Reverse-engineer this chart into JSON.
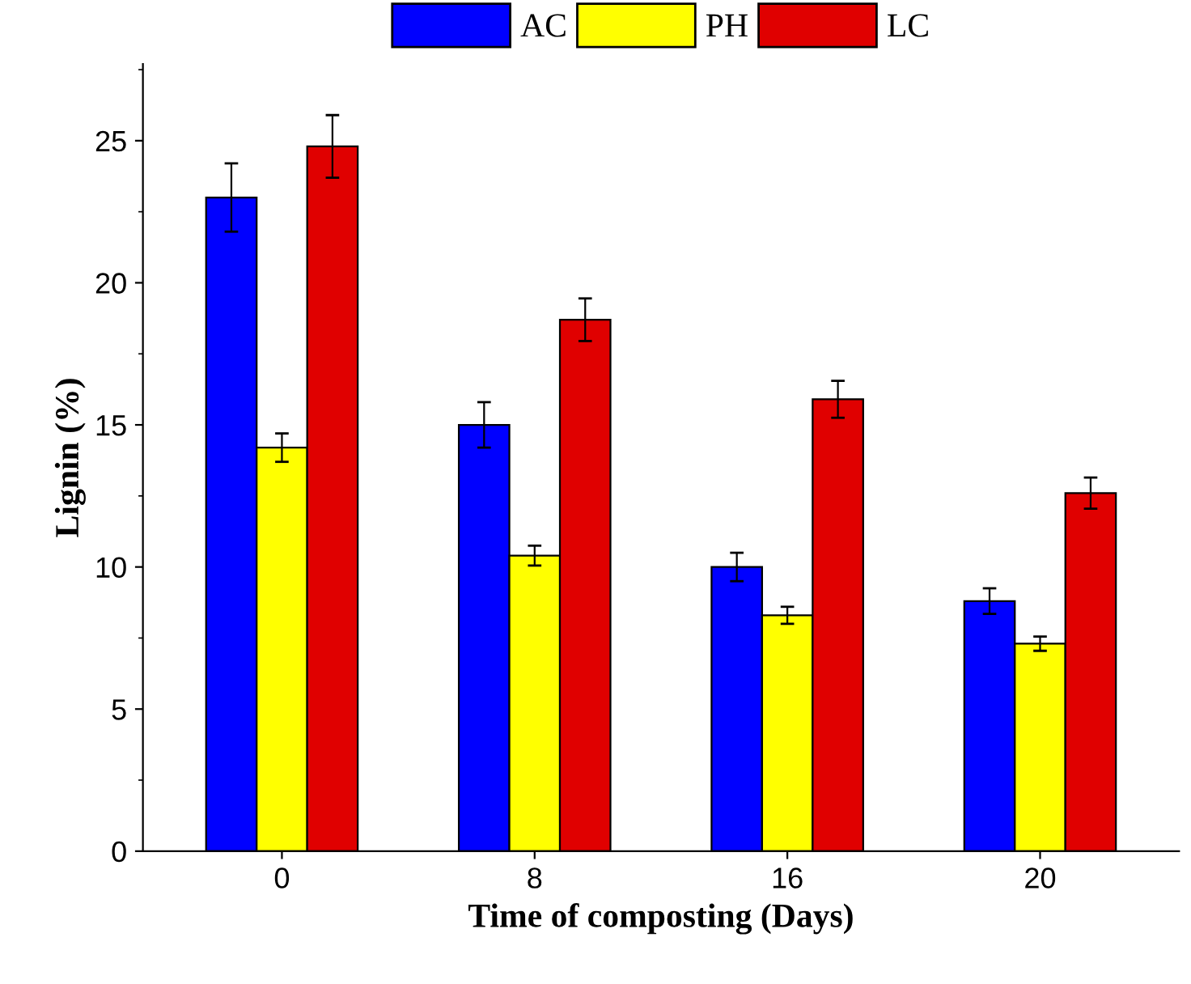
{
  "chart_data": {
    "type": "bar",
    "xlabel": "Time of composting (Days)",
    "ylabel": "Lignin (%)",
    "categories": [
      "0",
      "8",
      "16",
      "20"
    ],
    "series": [
      {
        "name": "AC",
        "color": "#0000ff",
        "values": [
          23.0,
          15.0,
          10.0,
          8.8
        ],
        "errors": [
          1.2,
          0.8,
          0.5,
          0.45
        ]
      },
      {
        "name": "PH",
        "color": "#ffff00",
        "values": [
          14.2,
          10.4,
          8.3,
          7.3
        ],
        "errors": [
          0.5,
          0.35,
          0.3,
          0.25
        ]
      },
      {
        "name": "LC",
        "color": "#e00000",
        "values": [
          24.8,
          18.7,
          15.9,
          12.6
        ],
        "errors": [
          1.1,
          0.75,
          0.65,
          0.55
        ]
      }
    ],
    "ylim": [
      0,
      27.7
    ],
    "yticks": [
      0,
      5,
      10,
      15,
      20,
      25
    ],
    "grid": false,
    "legend": "top"
  }
}
